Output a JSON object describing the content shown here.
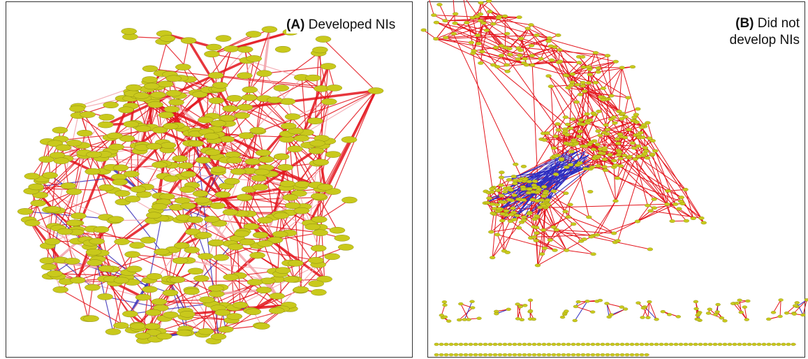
{
  "panels": [
    {
      "label": "(A)",
      "title": "Developed NIs"
    },
    {
      "label": "(B)",
      "title": "Did not develop NIs"
    }
  ]
}
